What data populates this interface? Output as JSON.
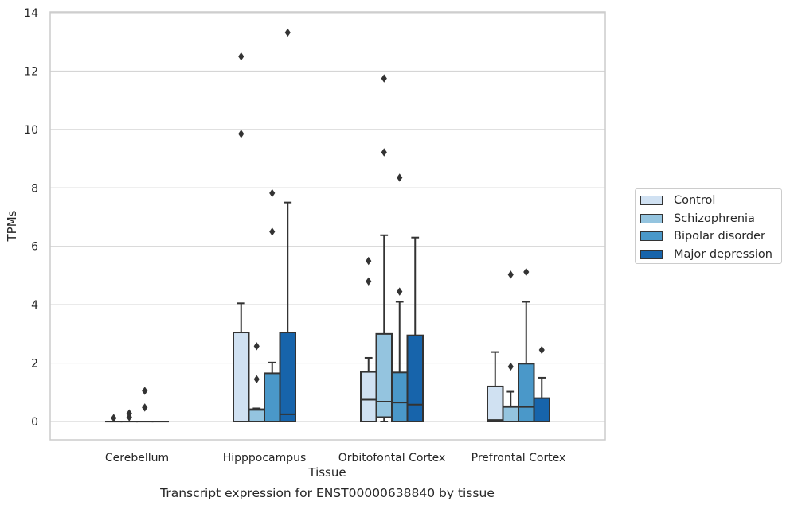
{
  "chart_data": {
    "type": "box",
    "title": "Transcript expression for ENST00000638840 by tissue",
    "xlabel": "Tissue",
    "ylabel": "TPMs",
    "ylim": [
      -0.6,
      14
    ],
    "yticks": [
      0,
      2,
      4,
      6,
      8,
      10,
      12,
      14
    ],
    "categories": [
      "Cerebellum",
      "Hipppocampus",
      "Orbitofontal Cortex",
      "Prefrontal Cortex"
    ],
    "grid": "horizontal",
    "legend_position": "right",
    "series": [
      {
        "name": "Control",
        "color": "#d0e1f2",
        "boxes": [
          {
            "q1": 0,
            "median": 0,
            "q3": 0,
            "whisker_low": 0,
            "whisker_high": 0,
            "outliers": [
              0.12
            ]
          },
          {
            "q1": 0,
            "median": 0,
            "q3": 3.05,
            "whisker_low": 0,
            "whisker_high": 4.05,
            "outliers": [
              9.85,
              12.5
            ]
          },
          {
            "q1": 0,
            "median": 0.75,
            "q3": 1.7,
            "whisker_low": 0,
            "whisker_high": 2.18,
            "outliers": [
              4.8,
              5.5
            ]
          },
          {
            "q1": 0,
            "median": 0.05,
            "q3": 1.2,
            "whisker_low": 0,
            "whisker_high": 2.38,
            "outliers": []
          }
        ]
      },
      {
        "name": "Schizophrenia",
        "color": "#94c4df",
        "boxes": [
          {
            "q1": 0,
            "median": 0,
            "q3": 0,
            "whisker_low": 0,
            "whisker_high": 0,
            "outliers": [
              0.15,
              0.28
            ]
          },
          {
            "q1": 0,
            "median": 0.4,
            "q3": 0.42,
            "whisker_low": 0,
            "whisker_high": 0.45,
            "outliers": [
              1.45,
              2.58
            ]
          },
          {
            "q1": 0.15,
            "median": 0.68,
            "q3": 3.0,
            "whisker_low": 0,
            "whisker_high": 6.38,
            "outliers": [
              9.22,
              11.75
            ]
          },
          {
            "q1": 0,
            "median": 0.5,
            "q3": 0.52,
            "whisker_low": 0,
            "whisker_high": 1.02,
            "outliers": [
              1.88,
              5.03
            ]
          }
        ]
      },
      {
        "name": "Bipolar disorder",
        "color": "#4a98c9",
        "boxes": [
          {
            "q1": 0,
            "median": 0,
            "q3": 0,
            "whisker_low": 0,
            "whisker_high": 0,
            "outliers": [
              0.48,
              1.05
            ]
          },
          {
            "q1": 0,
            "median": 0,
            "q3": 1.65,
            "whisker_low": 0,
            "whisker_high": 2.02,
            "outliers": [
              6.5,
              7.82
            ]
          },
          {
            "q1": 0,
            "median": 0.65,
            "q3": 1.68,
            "whisker_low": 0,
            "whisker_high": 4.1,
            "outliers": [
              4.45,
              8.35
            ]
          },
          {
            "q1": 0,
            "median": 0.5,
            "q3": 1.98,
            "whisker_low": 0,
            "whisker_high": 4.1,
            "outliers": [
              5.12
            ]
          }
        ]
      },
      {
        "name": "Major depression",
        "color": "#1764ab",
        "boxes": [
          {
            "q1": 0,
            "median": 0,
            "q3": 0,
            "whisker_low": 0,
            "whisker_high": 0,
            "outliers": []
          },
          {
            "q1": 0,
            "median": 0.25,
            "q3": 3.05,
            "whisker_low": 0,
            "whisker_high": 7.5,
            "outliers": [
              13.32
            ]
          },
          {
            "q1": 0,
            "median": 0.58,
            "q3": 2.95,
            "whisker_low": 0,
            "whisker_high": 6.3,
            "outliers": []
          },
          {
            "q1": 0,
            "median": 0,
            "q3": 0.8,
            "whisker_low": 0,
            "whisker_high": 1.5,
            "outliers": [
              2.45
            ]
          }
        ]
      }
    ]
  }
}
